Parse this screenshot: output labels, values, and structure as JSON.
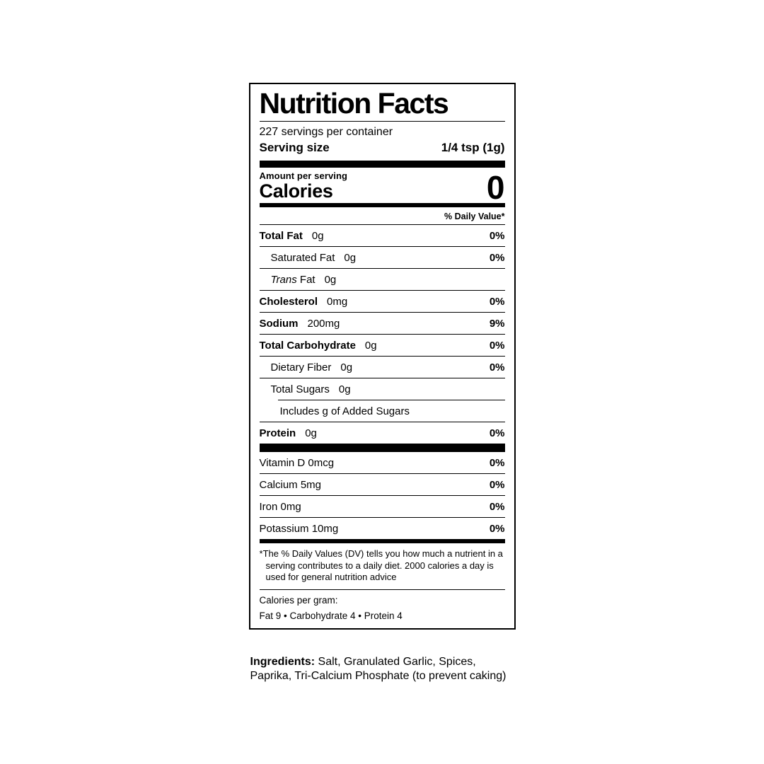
{
  "label": {
    "title": "Nutrition Facts",
    "servings_per_container": "227 servings per container",
    "serving_size_label": "Serving size",
    "serving_size_value": "1/4 tsp (1g)",
    "amount_per_serving": "Amount per serving",
    "calories_label": "Calories",
    "calories_value": "0",
    "daily_value_header": "% Daily Value*",
    "rows": [
      {
        "name": "Total Fat",
        "amount": "0g",
        "dv": "0%"
      },
      {
        "name": "Saturated Fat",
        "amount": "0g",
        "dv": "0%"
      },
      {
        "name_italic": "Trans",
        "name_rest": " Fat",
        "amount": "0g",
        "dv": ""
      },
      {
        "name": "Cholesterol",
        "amount": "0mg",
        "dv": "0%"
      },
      {
        "name": "Sodium",
        "amount": "200mg",
        "dv": "9%"
      },
      {
        "name": "Total Carbohydrate",
        "amount": "0g",
        "dv": "0%"
      },
      {
        "name": "Dietary Fiber",
        "amount": "0g",
        "dv": "0%"
      },
      {
        "name": "Total Sugars",
        "amount": "0g",
        "dv": ""
      },
      {
        "name": "Includes g of Added Sugars",
        "amount": "",
        "dv": ""
      },
      {
        "name": "Protein",
        "amount": "0g",
        "dv": "0%"
      }
    ],
    "vitamins": [
      {
        "name": "Vitamin D 0mcg",
        "dv": "0%"
      },
      {
        "name": "Calcium 5mg",
        "dv": "0%"
      },
      {
        "name": "Iron 0mg",
        "dv": "0%"
      },
      {
        "name": "Potassium 10mg",
        "dv": "0%"
      }
    ],
    "footnote_marker": "*",
    "footnote_text": "The % Daily Values (DV) tells you how much a nutrient in a serving contributes to a daily diet. 2000 calories a day is used for general nutrition advice",
    "calories_per_gram_label": "Calories per gram:",
    "calories_per_gram_value": "Fat 9  •  Carbohydrate 4  •  Protein 4"
  },
  "ingredients": {
    "label": "Ingredients:",
    "text": "Salt, Granulated Garlic, Spices, Paprika, Tri-Calcium Phosphate (to prevent caking)"
  }
}
